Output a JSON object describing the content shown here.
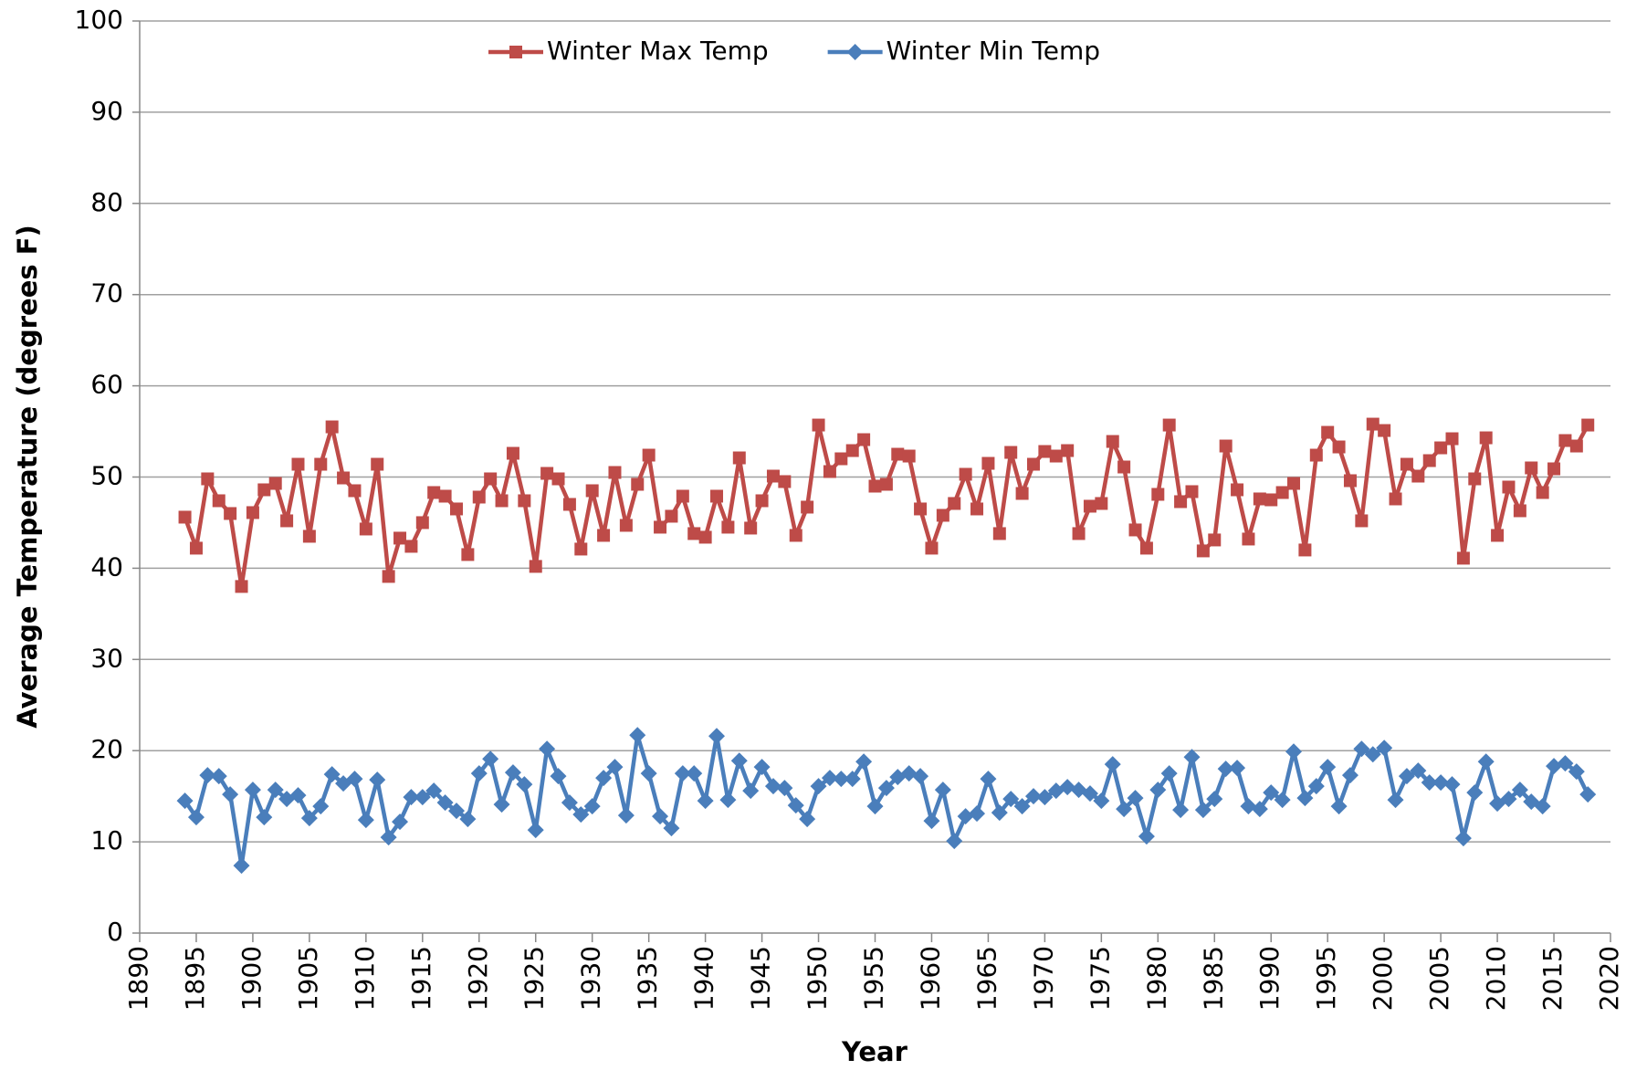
{
  "chart_data": {
    "type": "line",
    "xlabel": "Year",
    "ylabel": "Average Temperature (degrees F)",
    "x": [
      1894,
      1895,
      1896,
      1897,
      1898,
      1899,
      1900,
      1901,
      1902,
      1903,
      1904,
      1905,
      1906,
      1907,
      1908,
      1909,
      1910,
      1911,
      1912,
      1913,
      1914,
      1915,
      1916,
      1917,
      1918,
      1919,
      1920,
      1921,
      1922,
      1923,
      1924,
      1925,
      1926,
      1927,
      1928,
      1929,
      1930,
      1931,
      1932,
      1933,
      1934,
      1935,
      1936,
      1937,
      1938,
      1939,
      1940,
      1941,
      1942,
      1943,
      1944,
      1945,
      1946,
      1947,
      1948,
      1949,
      1950,
      1951,
      1952,
      1953,
      1954,
      1955,
      1956,
      1957,
      1958,
      1959,
      1960,
      1961,
      1962,
      1963,
      1964,
      1965,
      1966,
      1967,
      1968,
      1969,
      1970,
      1971,
      1972,
      1973,
      1974,
      1975,
      1976,
      1977,
      1978,
      1979,
      1980,
      1981,
      1982,
      1983,
      1984,
      1985,
      1986,
      1987,
      1988,
      1989,
      1990,
      1991,
      1992,
      1993,
      1994,
      1995,
      1996,
      1997,
      1998,
      1999,
      2000,
      2001,
      2002,
      2003,
      2004,
      2005,
      2006,
      2007,
      2008,
      2009,
      2010,
      2011,
      2012,
      2013,
      2014,
      2015,
      2016,
      2017,
      2018
    ],
    "series": [
      {
        "name": "Winter Max Temp",
        "color": "#be4b48",
        "marker": "square",
        "values": [
          45.6,
          42.2,
          49.8,
          47.4,
          46.0,
          38.0,
          46.1,
          48.6,
          49.3,
          45.2,
          51.4,
          43.5,
          51.4,
          55.5,
          49.9,
          48.5,
          44.3,
          51.4,
          39.1,
          43.3,
          42.4,
          45.0,
          48.3,
          47.9,
          46.5,
          41.5,
          47.8,
          49.8,
          47.4,
          52.6,
          47.4,
          40.2,
          50.4,
          49.8,
          47.0,
          42.1,
          48.5,
          43.6,
          50.5,
          44.7,
          49.2,
          52.4,
          44.5,
          45.7,
          47.9,
          43.8,
          43.4,
          47.9,
          44.5,
          52.1,
          44.4,
          47.4,
          50.1,
          49.5,
          43.6,
          46.7,
          55.7,
          50.6,
          52.0,
          52.9,
          54.1,
          49.0,
          49.2,
          52.5,
          52.3,
          46.5,
          42.2,
          45.8,
          47.1,
          50.3,
          46.5,
          51.5,
          43.8,
          52.7,
          48.2,
          51.4,
          52.8,
          52.3,
          52.9,
          43.8,
          46.8,
          47.1,
          53.9,
          51.1,
          44.2,
          42.2,
          48.1,
          55.7,
          47.3,
          48.4,
          41.9,
          43.1,
          53.4,
          48.6,
          43.2,
          47.6,
          47.5,
          48.3,
          49.3,
          42.0,
          52.4,
          54.9,
          53.3,
          49.6,
          45.2,
          55.8,
          55.1,
          47.6,
          51.4,
          50.1,
          51.8,
          53.2,
          54.2,
          41.1,
          49.8,
          54.3,
          43.6,
          48.9,
          46.3,
          51.0,
          48.3,
          50.9,
          54.0,
          53.4,
          55.7
        ]
      },
      {
        "name": "Winter Min Temp",
        "color": "#4a7ebb",
        "marker": "diamond",
        "values": [
          14.5,
          12.7,
          17.3,
          17.2,
          15.2,
          7.4,
          15.7,
          12.7,
          15.7,
          14.7,
          15.1,
          12.6,
          13.9,
          17.4,
          16.4,
          16.9,
          12.4,
          16.8,
          10.5,
          12.2,
          14.9,
          14.9,
          15.6,
          14.3,
          13.4,
          12.5,
          17.5,
          19.1,
          14.1,
          17.6,
          16.3,
          11.3,
          20.2,
          17.2,
          14.3,
          13.0,
          13.9,
          17.0,
          18.2,
          12.9,
          21.7,
          17.5,
          12.8,
          11.5,
          17.5,
          17.5,
          14.5,
          21.6,
          14.6,
          18.9,
          15.6,
          18.2,
          16.1,
          15.9,
          14.0,
          12.5,
          16.1,
          17.0,
          16.9,
          16.9,
          18.8,
          13.9,
          15.9,
          17.1,
          17.5,
          17.2,
          12.3,
          15.7,
          10.1,
          12.8,
          13.1,
          16.9,
          13.2,
          14.7,
          13.9,
          15.0,
          14.9,
          15.6,
          16.0,
          15.7,
          15.3,
          14.5,
          18.5,
          13.6,
          14.8,
          10.6,
          15.7,
          17.5,
          13.5,
          19.3,
          13.5,
          14.7,
          18.0,
          18.1,
          13.9,
          13.6,
          15.4,
          14.6,
          19.9,
          14.8,
          16.1,
          18.2,
          13.9,
          17.3,
          20.2,
          19.6,
          20.3,
          14.6,
          17.2,
          17.8,
          16.5,
          16.5,
          16.3,
          10.4,
          15.4,
          18.8,
          14.2,
          14.7,
          15.7,
          14.4,
          13.9,
          18.3,
          18.6,
          17.7,
          15.2
        ]
      }
    ],
    "xlim": [
      1890,
      2020
    ],
    "xticks": [
      1890,
      1895,
      1900,
      1905,
      1910,
      1915,
      1920,
      1925,
      1930,
      1935,
      1940,
      1945,
      1950,
      1955,
      1960,
      1965,
      1970,
      1975,
      1980,
      1985,
      1990,
      1995,
      2000,
      2005,
      2010,
      2015,
      2020
    ],
    "ylim": [
      0,
      100
    ],
    "yticks": [
      0,
      10,
      20,
      30,
      40,
      50,
      60,
      70,
      80,
      90,
      100
    ],
    "grid": true,
    "legend": "top"
  }
}
